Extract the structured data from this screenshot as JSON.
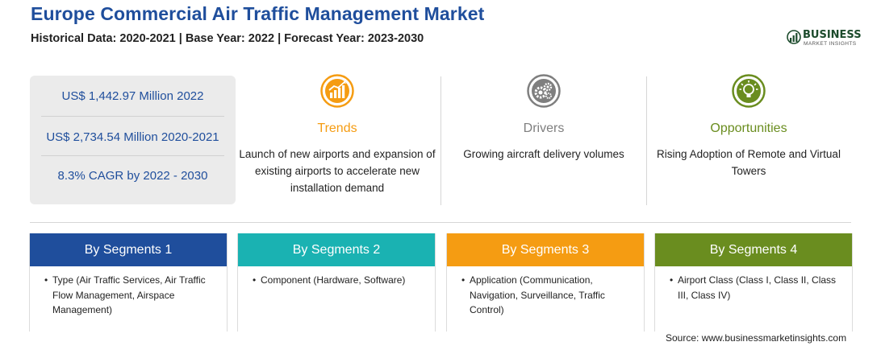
{
  "header": {
    "title": "Europe Commercial Air Traffic Management Market",
    "subtitle": "Historical Data: 2020-2021 | Base Year: 2022 | Forecast Year: 2023-2030"
  },
  "logo": {
    "name": "BUSINESS",
    "tagline": "MARKET INSIGHTS"
  },
  "stats": [
    "US$ 1,442.97 Million 2022",
    "US$ 2,734.54 Million 2020-2021",
    "8.3% CAGR by 2022 - 2030"
  ],
  "highlights": [
    {
      "label": "Trends",
      "color": "#f59c12",
      "icon": "chart-growth-icon",
      "desc": "Launch of new airports and expansion of existing airports to accelerate new installation demand"
    },
    {
      "label": "Drivers",
      "color": "#7f7f7f",
      "icon": "gears-icon",
      "desc": "Growing aircraft delivery volumes"
    },
    {
      "label": "Opportunities",
      "color": "#6a8d1f",
      "icon": "lightbulb-icon",
      "desc": "Rising Adoption of Remote and Virtual Towers"
    }
  ],
  "segments": [
    {
      "title": "By Segments 1",
      "color": "#1f4e9c",
      "item": "Type (Air Traffic Services, Air Traffic Flow Management, Airspace Management)"
    },
    {
      "title": "By Segments 2",
      "color": "#1ab2b2",
      "item": "Component (Hardware, Software)"
    },
    {
      "title": "By Segments 3",
      "color": "#f59c12",
      "item": "Application (Communication, Navigation, Surveillance, Traffic Control)"
    },
    {
      "title": "By Segments 4",
      "color": "#6a8d1f",
      "item": "Airport Class (Class I, Class II, Class III, Class IV)"
    }
  ],
  "source": "Source: www.businessmarketinsights.com"
}
